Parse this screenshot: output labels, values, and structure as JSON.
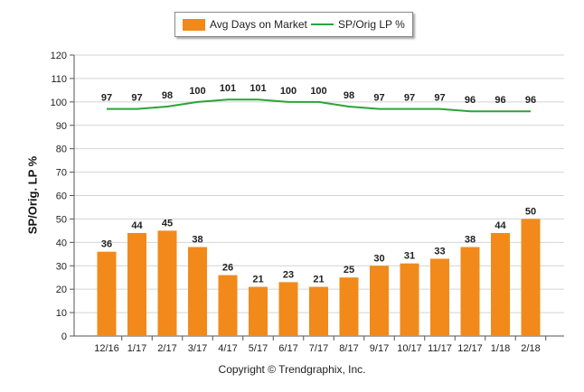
{
  "legend": {
    "bar_label": "Avg Days on Market",
    "line_label": "SP/Orig LP %"
  },
  "copyright": "Copyright © Trendgraphix, Inc.",
  "colors": {
    "bar": "#f18a1a",
    "line": "#2aa43a",
    "grid": "#d4d4d4"
  },
  "chart_data": {
    "type": "bar",
    "title": "",
    "xlabel": "",
    "ylabel": "SP/Orig. LP %",
    "ylim": [
      0,
      120
    ],
    "yticks": [
      0,
      10,
      20,
      30,
      40,
      50,
      60,
      70,
      80,
      90,
      100,
      110,
      120
    ],
    "grid": true,
    "legend_position": "top-center",
    "categories": [
      "12/16",
      "1/17",
      "2/17",
      "3/17",
      "4/17",
      "5/17",
      "6/17",
      "7/17",
      "8/17",
      "9/17",
      "10/17",
      "11/17",
      "12/17",
      "1/18",
      "2/18"
    ],
    "series": [
      {
        "name": "Avg Days on Market",
        "type": "bar",
        "values": [
          36,
          44,
          45,
          38,
          26,
          21,
          23,
          21,
          25,
          30,
          31,
          33,
          38,
          44,
          50
        ]
      },
      {
        "name": "SP/Orig LP %",
        "type": "line",
        "values": [
          97,
          97,
          98,
          100,
          101,
          101,
          100,
          100,
          98,
          97,
          97,
          97,
          96,
          96,
          96
        ]
      }
    ]
  }
}
